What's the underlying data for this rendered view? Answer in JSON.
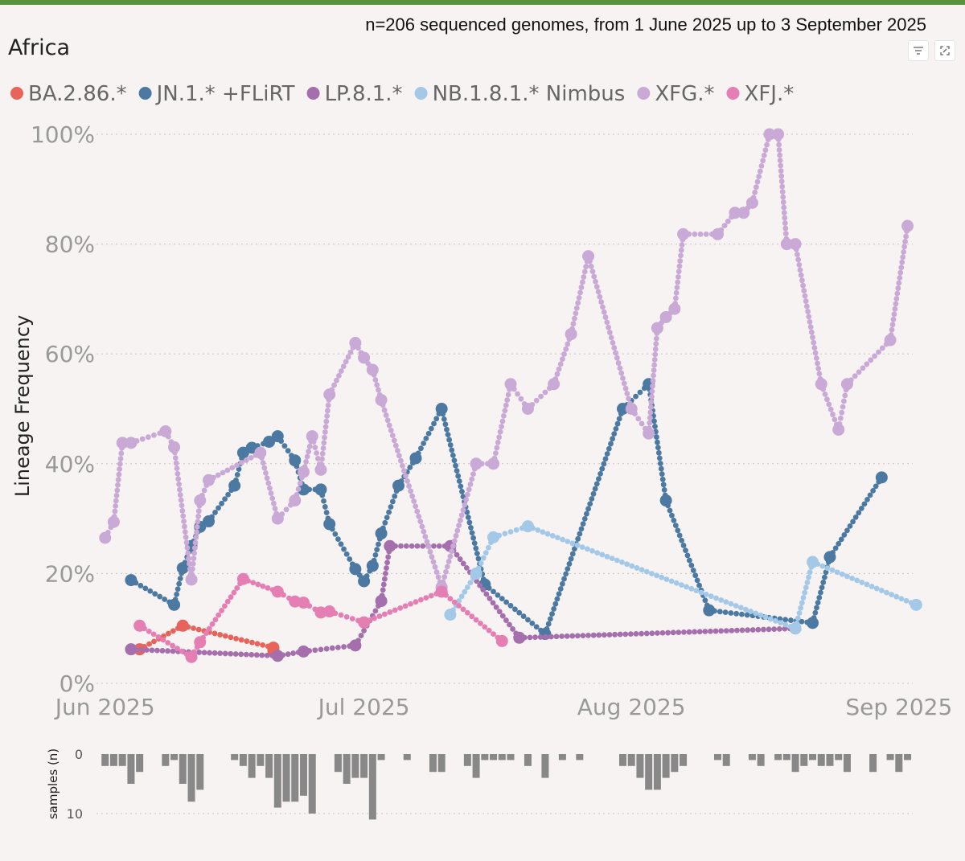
{
  "header": {
    "subtitle": "n=206 sequenced genomes, from 1 June 2025 up to 3 September 2025",
    "region": "Africa"
  },
  "toolbar": {
    "filter_icon": "filter-icon",
    "expand_icon": "expand-icon"
  },
  "chart_data": [
    {
      "type": "line",
      "title": "Africa",
      "ylabel": "Lineage Frequency",
      "xlabel": "",
      "ylim": [
        0,
        100
      ],
      "yticks": [
        {
          "value": 0,
          "label": "0%"
        },
        {
          "value": 20,
          "label": "20%"
        },
        {
          "value": 40,
          "label": "40%"
        },
        {
          "value": 60,
          "label": "60%"
        },
        {
          "value": 80,
          "label": "80%"
        },
        {
          "value": 100,
          "label": "100%"
        }
      ],
      "xlim": [
        -1,
        95
      ],
      "xticks": [
        {
          "value": 0,
          "label": "Jun 2025"
        },
        {
          "value": 30,
          "label": "Jul 2025"
        },
        {
          "value": 61,
          "label": "Aug 2025"
        },
        {
          "value": 92,
          "label": "Sep 2025"
        }
      ],
      "x_unit": "days since 1 June 2025",
      "grid": true,
      "legend": "top",
      "series": [
        {
          "name": "BA.2.86.*",
          "color": "#e8635a",
          "points": [
            [
              4,
              6.2
            ],
            [
              9,
              10.5
            ],
            [
              19.5,
              6.5
            ],
            [
              19.5,
              6.0
            ]
          ]
        },
        {
          "name": "JN.1.* +FLiRT",
          "color": "#4b79a1",
          "points": [
            [
              3,
              18.8
            ],
            [
              8,
              14.3
            ],
            [
              9,
              21.0
            ],
            [
              10,
              25.0
            ],
            [
              11,
              28.5
            ],
            [
              12,
              29.5
            ],
            [
              15,
              36.0
            ],
            [
              16,
              42.0
            ],
            [
              17,
              42.9
            ],
            [
              19,
              44.0
            ],
            [
              20,
              45.0
            ],
            [
              22,
              40.6
            ],
            [
              23,
              35.3
            ],
            [
              25,
              35.3
            ],
            [
              26,
              29.0
            ],
            [
              29,
              20.8
            ],
            [
              30,
              18.6
            ],
            [
              31,
              21.4
            ],
            [
              32,
              27.3
            ],
            [
              34,
              36.0
            ],
            [
              36,
              41.0
            ],
            [
              39,
              50.0
            ],
            [
              44,
              18.0
            ],
            [
              51,
              9.0
            ],
            [
              60,
              50.0
            ],
            [
              63,
              54.5
            ],
            [
              65,
              33.3
            ],
            [
              70,
              13.3
            ],
            [
              82,
              11.0
            ],
            [
              84,
              23.0
            ],
            [
              90,
              37.5
            ]
          ]
        },
        {
          "name": "LP.8.1.*",
          "color": "#a56fad",
          "points": [
            [
              3,
              6.2
            ],
            [
              20,
              5.0
            ],
            [
              23,
              5.8
            ],
            [
              29,
              6.9
            ],
            [
              32,
              15.0
            ],
            [
              33,
              25.0
            ],
            [
              40,
              25.0
            ],
            [
              48,
              8.3
            ],
            [
              80,
              10.0
            ]
          ]
        },
        {
          "name": "NB.1.8.1.* Nimbus",
          "color": "#a4c9e8",
          "points": [
            [
              40,
              12.5
            ],
            [
              43,
              20.0
            ],
            [
              45,
              26.6
            ],
            [
              49,
              28.6
            ],
            [
              80,
              10.0
            ],
            [
              82,
              22.1
            ],
            [
              94,
              14.3
            ]
          ]
        },
        {
          "name": "XFG.*",
          "color": "#c9a9d5",
          "points": [
            [
              0,
              26.5
            ],
            [
              1,
              29.4
            ],
            [
              2,
              43.8
            ],
            [
              3,
              43.8
            ],
            [
              7,
              45.9
            ],
            [
              8,
              43.0
            ],
            [
              10,
              18.9
            ],
            [
              11,
              33.3
            ],
            [
              12,
              37.0
            ],
            [
              18,
              42.0
            ],
            [
              20,
              30.0
            ],
            [
              22,
              33.3
            ],
            [
              23,
              38.5
            ],
            [
              24,
              45.0
            ],
            [
              25,
              38.9
            ],
            [
              26,
              52.6
            ],
            [
              29,
              62.0
            ],
            [
              30,
              59.3
            ],
            [
              31,
              57.1
            ],
            [
              32,
              51.6
            ],
            [
              39,
              17.5
            ],
            [
              43,
              40.0
            ],
            [
              45,
              40.0
            ],
            [
              47,
              54.5
            ],
            [
              49,
              50.0
            ],
            [
              52,
              54.5
            ],
            [
              54,
              63.6
            ],
            [
              56,
              77.8
            ],
            [
              61,
              50.0
            ],
            [
              63,
              45.5
            ],
            [
              64,
              64.7
            ],
            [
              65,
              66.7
            ],
            [
              66,
              68.2
            ],
            [
              67,
              81.8
            ],
            [
              71,
              81.8
            ],
            [
              73,
              85.7
            ],
            [
              74,
              85.7
            ],
            [
              75,
              87.5
            ],
            [
              77,
              100
            ],
            [
              78,
              100
            ],
            [
              79,
              80.0
            ],
            [
              80,
              80.0
            ],
            [
              83,
              54.5
            ],
            [
              85,
              46.2
            ],
            [
              86,
              54.5
            ],
            [
              91,
              62.5
            ],
            [
              93,
              83.3
            ]
          ]
        },
        {
          "name": "XFJ.*",
          "color": "#e57fb3",
          "points": [
            [
              4,
              10.5
            ],
            [
              10,
              4.8
            ],
            [
              11,
              7.5
            ],
            [
              16,
              19.0
            ],
            [
              20,
              16.7
            ],
            [
              22,
              14.9
            ],
            [
              23,
              14.7
            ],
            [
              25,
              12.9
            ],
            [
              26,
              13.1
            ],
            [
              30,
              11.1
            ],
            [
              39,
              16.7
            ],
            [
              46,
              7.7
            ]
          ]
        }
      ]
    },
    {
      "type": "bar",
      "ylabel": "samples (n)",
      "ylim": [
        0,
        11
      ],
      "orientation": "downward",
      "yticks": [
        {
          "value": 0,
          "label": "0"
        },
        {
          "value": 10,
          "label": "10"
        }
      ],
      "x_unit": "days since 1 June 2025",
      "color": "#888888",
      "bars": [
        [
          0,
          2
        ],
        [
          1,
          2
        ],
        [
          2,
          2
        ],
        [
          3,
          5
        ],
        [
          4,
          3
        ],
        [
          7,
          2
        ],
        [
          8,
          1
        ],
        [
          9,
          5
        ],
        [
          10,
          8
        ],
        [
          11,
          6
        ],
        [
          15,
          1
        ],
        [
          16,
          2
        ],
        [
          17,
          4
        ],
        [
          18,
          2
        ],
        [
          19,
          4
        ],
        [
          20,
          9
        ],
        [
          21,
          8
        ],
        [
          22,
          8
        ],
        [
          23,
          7
        ],
        [
          24,
          10
        ],
        [
          27,
          3
        ],
        [
          28,
          5
        ],
        [
          29,
          4
        ],
        [
          30,
          4
        ],
        [
          31,
          11
        ],
        [
          32,
          1
        ],
        [
          35,
          1
        ],
        [
          38,
          3
        ],
        [
          39,
          3
        ],
        [
          42,
          2
        ],
        [
          43,
          4
        ],
        [
          44,
          1
        ],
        [
          45,
          1
        ],
        [
          46,
          1
        ],
        [
          47,
          1
        ],
        [
          49,
          2
        ],
        [
          51,
          4
        ],
        [
          53,
          1
        ],
        [
          55,
          1
        ],
        [
          60,
          2
        ],
        [
          61,
          2
        ],
        [
          62,
          4
        ],
        [
          63,
          6
        ],
        [
          64,
          6
        ],
        [
          65,
          4
        ],
        [
          66,
          3
        ],
        [
          67,
          2
        ],
        [
          71,
          1
        ],
        [
          72,
          2
        ],
        [
          75,
          1
        ],
        [
          76,
          2
        ],
        [
          78,
          1
        ],
        [
          79,
          1
        ],
        [
          80,
          3
        ],
        [
          81,
          2
        ],
        [
          82,
          1
        ],
        [
          83,
          2
        ],
        [
          84,
          2
        ],
        [
          85,
          1
        ],
        [
          86,
          3
        ],
        [
          89,
          3
        ],
        [
          91,
          1
        ],
        [
          92,
          3
        ],
        [
          93,
          1
        ]
      ]
    }
  ]
}
